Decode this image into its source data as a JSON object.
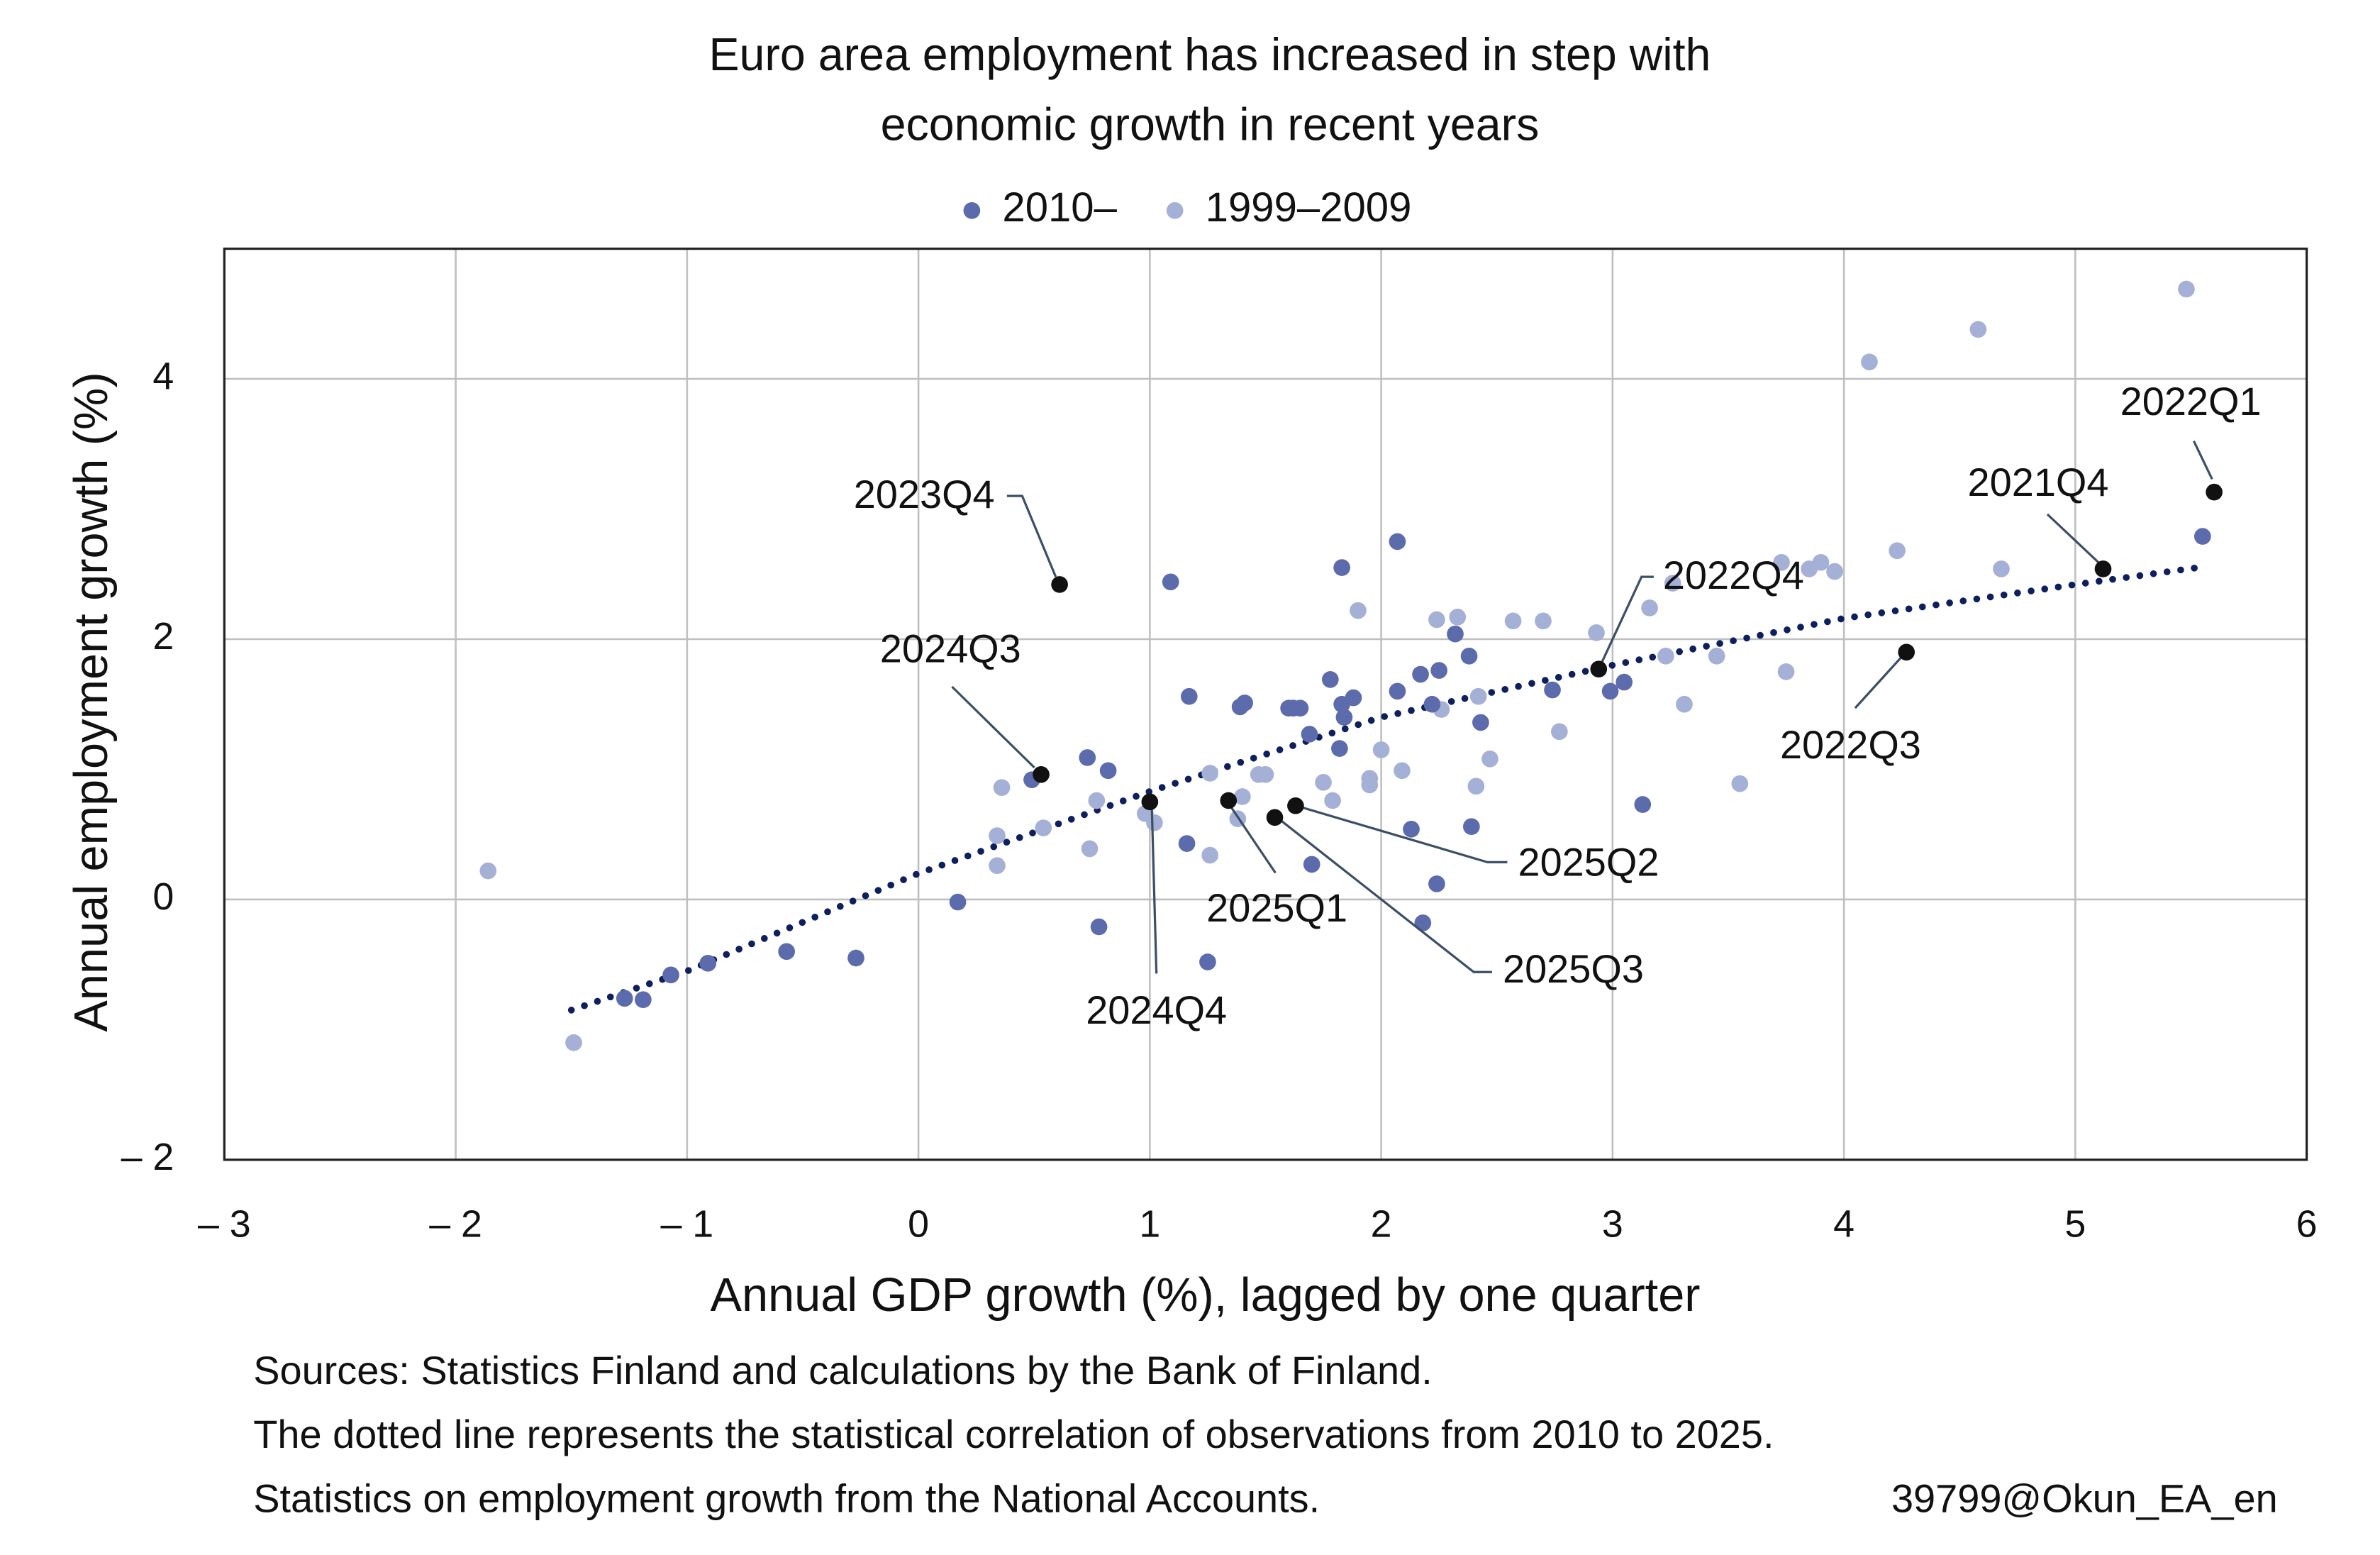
{
  "chart_data": {
    "type": "scatter",
    "title": [
      "Euro area employment has increased in step with",
      "economic growth in recent years"
    ],
    "xlabel": "Annual GDP growth (%), lagged by one quarter",
    "ylabel": "Annual employment growth (%)",
    "xlim": [
      -3,
      6
    ],
    "ylim": [
      -2,
      5
    ],
    "xticks": [
      {
        "value": -3,
        "label": "– 3"
      },
      {
        "value": -2,
        "label": "– 2"
      },
      {
        "value": -1,
        "label": "– 1"
      },
      0,
      1,
      2,
      3,
      4,
      5,
      6
    ],
    "yticks": [
      {
        "value": -2,
        "label": "– 2"
      },
      0,
      2,
      4
    ],
    "grid": true,
    "legend": "top",
    "series": [
      {
        "name": "2010–",
        "color": "#5b6bab",
        "x": [
          5.55,
          2.07,
          1.09,
          1.83,
          2.32,
          2.38,
          2.17,
          2.25,
          2.07,
          1.88,
          1.78,
          1.83,
          1.84,
          1.82,
          1.69,
          1.62,
          1.6,
          1.65,
          1.41,
          1.39,
          1.17,
          2.74,
          2.99,
          3.05,
          2.43,
          2.22,
          3.13,
          2.39,
          2.13,
          1.7,
          2.24,
          2.18,
          1.16,
          1.25,
          0.78,
          0.73,
          0.82,
          0.17,
          0.49,
          -0.27,
          -0.57,
          -0.91,
          -1.07,
          -1.19,
          -1.27
        ],
        "y": [
          2.79,
          2.75,
          2.44,
          2.55,
          2.04,
          1.87,
          1.73,
          1.76,
          1.6,
          1.55,
          1.69,
          1.5,
          1.4,
          1.16,
          1.27,
          1.47,
          1.47,
          1.47,
          1.51,
          1.48,
          1.56,
          1.61,
          1.6,
          1.67,
          1.36,
          1.5,
          0.73,
          0.56,
          0.54,
          0.27,
          0.12,
          -0.18,
          0.43,
          -0.48,
          -0.21,
          1.09,
          0.99,
          -0.02,
          0.92,
          -0.45,
          -0.4,
          -0.49,
          -0.58,
          -0.77,
          -0.76
        ]
      },
      {
        "name": "1999–2009",
        "color": "#a5b0d6",
        "x": [
          5.48,
          4.58,
          4.11,
          4.23,
          4.68,
          3.9,
          3.85,
          3.73,
          3.96,
          3.26,
          3.16,
          2.93,
          2.7,
          2.57,
          2.33,
          2.24,
          1.9,
          3.75,
          3.45,
          3.31,
          3.23,
          2.77,
          2.47,
          2.41,
          2.26,
          2.42,
          3.55,
          2.0,
          2.09,
          1.95,
          1.95,
          1.75,
          1.79,
          1.5,
          1.47,
          1.4,
          1.38,
          1.26,
          1.26,
          1.02,
          0.98,
          0.77,
          0.74,
          0.36,
          0.34,
          0.34,
          0.54,
          -1.86,
          -1.49
        ],
        "y": [
          4.69,
          4.38,
          4.13,
          2.68,
          2.54,
          2.59,
          2.54,
          2.59,
          2.52,
          2.43,
          2.24,
          2.05,
          2.14,
          2.14,
          2.17,
          2.15,
          2.22,
          1.75,
          1.87,
          1.5,
          1.87,
          1.29,
          1.08,
          0.87,
          1.46,
          1.56,
          0.89,
          1.15,
          0.99,
          0.93,
          0.88,
          0.9,
          0.76,
          0.96,
          0.96,
          0.79,
          0.62,
          0.97,
          0.34,
          0.59,
          0.66,
          0.76,
          0.39,
          0.86,
          0.49,
          0.26,
          0.55,
          0.22,
          -1.1
        ]
      }
    ],
    "highlights": {
      "color": "#111111",
      "labels": [
        "2022Q1",
        "2021Q4",
        "2022Q4",
        "2022Q3",
        "2023Q4",
        "2024Q3",
        "2024Q4",
        "2025Q1",
        "2025Q2",
        "2025Q3"
      ],
      "x": [
        5.6,
        5.12,
        2.94,
        4.27,
        0.61,
        0.53,
        1.0,
        1.34,
        1.63,
        1.54
      ],
      "y": [
        3.13,
        2.54,
        1.77,
        1.9,
        2.42,
        0.96,
        0.75,
        0.76,
        0.72,
        0.63
      ]
    },
    "trend": {
      "color": "#0d1f5c",
      "x": [
        -1.5,
        -1,
        0,
        1,
        2,
        3,
        4,
        5,
        5.57
      ],
      "y": [
        -0.85,
        -0.55,
        0.2,
        0.83,
        1.4,
        1.8,
        2.16,
        2.42,
        2.56
      ]
    },
    "notes": [
      "Sources: Statistics Finland and calculations by the Bank of Finland.",
      "The dotted line represents the statistical correlation of observations from 2010 to 2025.",
      "Statistics on employment growth from the National Accounts."
    ],
    "code": "39799@Okun_EA_en"
  }
}
